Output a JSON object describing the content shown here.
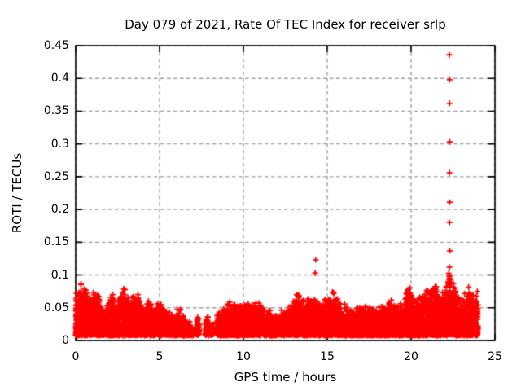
{
  "chart_data": {
    "type": "scatter",
    "title": "Day 079 of 2021, Rate Of TEC Index for receiver srlp",
    "xlabel": "GPS time / hours",
    "ylabel": "ROTI / TECUs",
    "xlim": [
      0,
      25
    ],
    "ylim": [
      0,
      0.45
    ],
    "xticks": [
      0,
      5,
      10,
      15,
      20,
      25
    ],
    "yticks": [
      0,
      0.05,
      0.1,
      0.15,
      0.2,
      0.25,
      0.3,
      0.35,
      0.4,
      0.45
    ],
    "grid": true,
    "legend": "none",
    "marker": {
      "shape": "plus",
      "color": "#ff0000",
      "size": 7
    },
    "colors": {
      "axis": "#000000",
      "grid": "#9f9f9f",
      "background": "#ffffff",
      "text": "#000000"
    },
    "series": [
      {
        "name": "ROTI",
        "color": "#ff0000",
        "band_min": 0.009,
        "band_segments": [
          {
            "x_start": 0.0,
            "x_end": 7.02,
            "points_per_step": 4,
            "upper_envelope": [
              [
                0.0,
                0.068
              ],
              [
                0.3,
                0.082
              ],
              [
                0.6,
                0.075
              ],
              [
                0.9,
                0.052
              ],
              [
                1.2,
                0.08
              ],
              [
                1.5,
                0.052
              ],
              [
                1.75,
                0.042
              ],
              [
                2.1,
                0.066
              ],
              [
                2.5,
                0.058
              ],
              [
                2.9,
                0.07
              ],
              [
                3.2,
                0.055
              ],
              [
                3.5,
                0.067
              ],
              [
                3.8,
                0.058
              ],
              [
                4.1,
                0.052
              ],
              [
                4.4,
                0.06
              ],
              [
                4.7,
                0.046
              ],
              [
                5.0,
                0.05
              ],
              [
                5.3,
                0.046
              ],
              [
                5.6,
                0.038
              ],
              [
                5.9,
                0.033
              ],
              [
                6.2,
                0.044
              ],
              [
                6.5,
                0.03
              ],
              [
                6.8,
                0.023
              ],
              [
                7.02,
                0.018
              ]
            ]
          },
          {
            "x_start": 8.4,
            "x_end": 24.0,
            "points_per_step": 4,
            "upper_envelope": [
              [
                8.4,
                0.036
              ],
              [
                8.9,
                0.046
              ],
              [
                9.3,
                0.056
              ],
              [
                9.7,
                0.046
              ],
              [
                10.1,
                0.056
              ],
              [
                10.5,
                0.048
              ],
              [
                10.9,
                0.056
              ],
              [
                11.3,
                0.042
              ],
              [
                11.7,
                0.036
              ],
              [
                12.1,
                0.036
              ],
              [
                12.5,
                0.04
              ],
              [
                12.9,
                0.05
              ],
              [
                13.2,
                0.066
              ],
              [
                13.6,
                0.056
              ],
              [
                14.0,
                0.06
              ],
              [
                14.4,
                0.063
              ],
              [
                14.8,
                0.056
              ],
              [
                15.2,
                0.072
              ],
              [
                15.5,
                0.066
              ],
              [
                15.9,
                0.05
              ],
              [
                16.3,
                0.046
              ],
              [
                16.7,
                0.042
              ],
              [
                17.1,
                0.047
              ],
              [
                17.5,
                0.042
              ],
              [
                17.9,
                0.047
              ],
              [
                18.3,
                0.047
              ],
              [
                18.7,
                0.056
              ],
              [
                19.1,
                0.048
              ],
              [
                19.55,
                0.056
              ],
              [
                19.85,
                0.078
              ],
              [
                20.2,
                0.062
              ],
              [
                20.6,
                0.06
              ],
              [
                21.0,
                0.072
              ],
              [
                21.35,
                0.09
              ],
              [
                21.7,
                0.063
              ],
              [
                22.0,
                0.072
              ],
              [
                22.3,
                0.1
              ],
              [
                22.55,
                0.086
              ],
              [
                22.8,
                0.062
              ],
              [
                23.1,
                0.058
              ],
              [
                23.45,
                0.076
              ],
              [
                23.7,
                0.06
              ],
              [
                24.0,
                0.068
              ]
            ]
          }
        ],
        "sparse_segments": [
          {
            "x_start": 7.18,
            "x_end": 7.38,
            "points_per_step": 2,
            "upper_envelope": [
              [
                7.18,
                0.02
              ],
              [
                7.3,
                0.036
              ],
              [
                7.38,
                0.022
              ]
            ]
          },
          {
            "x_start": 7.72,
            "x_end": 7.95,
            "points_per_step": 2,
            "upper_envelope": [
              [
                7.72,
                0.03
              ],
              [
                7.85,
                0.04
              ],
              [
                7.95,
                0.025
              ]
            ]
          },
          {
            "x_start": 8.05,
            "x_end": 8.22,
            "points_per_step": 1.5,
            "upper_envelope": [
              [
                8.05,
                0.028
              ],
              [
                8.22,
                0.022
              ]
            ]
          }
        ],
        "outlier_points": [
          [
            14.28,
            0.103
          ],
          [
            14.31,
            0.123
          ],
          [
            22.27,
            0.072
          ],
          [
            22.31,
            0.076
          ],
          [
            22.29,
            0.081
          ],
          [
            22.32,
            0.086
          ],
          [
            22.28,
            0.09
          ],
          [
            22.3,
            0.095
          ],
          [
            22.31,
            0.099
          ],
          [
            22.28,
            0.085
          ],
          [
            22.29,
            0.112
          ],
          [
            22.31,
            0.137
          ],
          [
            22.29,
            0.18
          ],
          [
            22.3,
            0.211
          ],
          [
            22.29,
            0.256
          ],
          [
            22.3,
            0.303
          ],
          [
            22.29,
            0.362
          ],
          [
            22.3,
            0.398
          ],
          [
            22.28,
            0.436
          ]
        ]
      }
    ]
  }
}
